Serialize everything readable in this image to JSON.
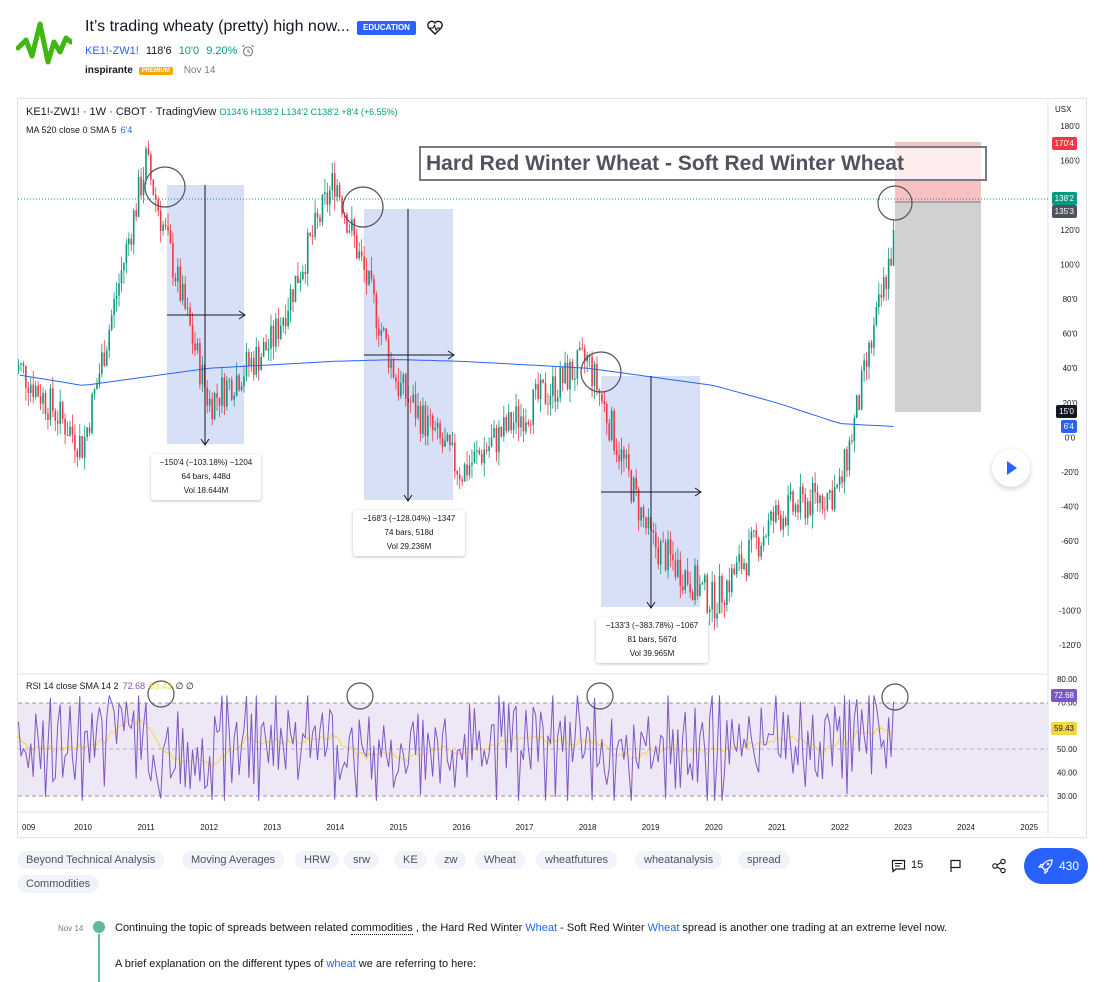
{
  "header": {
    "title": "It’s trading wheaty (pretty) high now...",
    "badge": "EDUCATION",
    "symbol": "KE1!-ZW1!",
    "last": "118'6",
    "change": "10'0",
    "change_pct": "9.20%",
    "author": "inspirante",
    "premium": "PREMIUM",
    "date": "Nov 14"
  },
  "chart": {
    "legend_title": "KE1!-ZW1! · 1W · CBOT · TradingView",
    "ohlc": "O134'6 H138'2 L134'2 C138'2 +8'4 (+6.55%)",
    "ma_label": "MA 520 close 0 SMA 5",
    "ma_value": "6'4",
    "rsi_label": "RSI 14 close SMA 14 2",
    "rsi_value": "72.68",
    "rsi_sma_value": "59.43",
    "rsi_extra": "∅ ∅",
    "currency": "USX",
    "annotation": "Hard Red Winter Wheat - Soft Red Winter Wheat",
    "y_ticks": [
      "180'0",
      "160'0",
      "120'0",
      "100'0",
      "80'0",
      "60'0",
      "40'0",
      "20'0",
      "0'0",
      "-20'0",
      "-40'0",
      "-60'0",
      "-80'0",
      "-100'0",
      "-120'0"
    ],
    "rsi_ticks": [
      "80.00",
      "70.00",
      "50.00",
      "40.00",
      "30.00"
    ],
    "price_labels": {
      "stop": "170'4",
      "close": "138'2",
      "timer": "135'3",
      "target": "15'0",
      "ma": "6'4",
      "rsi": "72.68",
      "rsi_sma": "59.43"
    },
    "x_ticks": [
      "009",
      "2010",
      "2011",
      "2012",
      "2013",
      "2014",
      "2015",
      "2016",
      "2017",
      "2018",
      "2019",
      "2020",
      "2021",
      "2022",
      "2023",
      "2024",
      "2025"
    ],
    "measures": [
      {
        "line1": "−150'4 (−103.18%) −1204",
        "line2": "64 bars, 448d",
        "line3": "Vol 18.644M"
      },
      {
        "line1": "−168'3 (−128.04%) −1347",
        "line2": "74 bars, 518d",
        "line3": "Vol 29.236M"
      },
      {
        "line1": "−133'3 (−383.78%) −1067",
        "line2": "81 bars, 567d",
        "line3": "Vol 39.965M"
      }
    ]
  },
  "chart_data": {
    "type": "line",
    "title": "Hard Red Winter Wheat - Soft Red Winter Wheat",
    "x": [
      "2009",
      "2010",
      "2011",
      "2012",
      "2013",
      "2014",
      "2015",
      "2016",
      "2017",
      "2018",
      "2019",
      "2020",
      "2021",
      "2022",
      "2023"
    ],
    "series": [
      {
        "values": [
          40,
          -5,
          160,
          20,
          55,
          150,
          30,
          -20,
          15,
          45,
          -60,
          -95,
          -45,
          -30,
          138
        ]
      },
      {
        "values": [
          36,
          30,
          35,
          40,
          42,
          44,
          45,
          44,
          42,
          40,
          35,
          30,
          20,
          8,
          6
        ]
      }
    ],
    "ylim": [
      -130,
      185
    ],
    "rsi": {
      "ylim": [
        25,
        82
      ]
    }
  },
  "tags": [
    "Beyond Technical Analysis",
    "Moving Averages",
    "HRW",
    "srw",
    "KE",
    "zw",
    "Wheat",
    "wheatfutures",
    "wheatanalysis",
    "spread",
    "Commodities"
  ],
  "actions": {
    "comments": "15",
    "boosts": "430"
  },
  "post": {
    "date": "Nov 14",
    "p1_a": "Continuing the topic of spreads between related ",
    "p1_link1": "commodities",
    "p1_b": " , the Hard Red Winter ",
    "p1_link2": "Wheat",
    "p1_c": " - Soft Red Winter ",
    "p1_link3": "Wheat",
    "p1_d": " spread is another one trading at an extreme level now.",
    "p2_a": "A brief explanation on the different types of ",
    "p2_link": "wheat",
    "p2_b": " we are referring to here:"
  }
}
